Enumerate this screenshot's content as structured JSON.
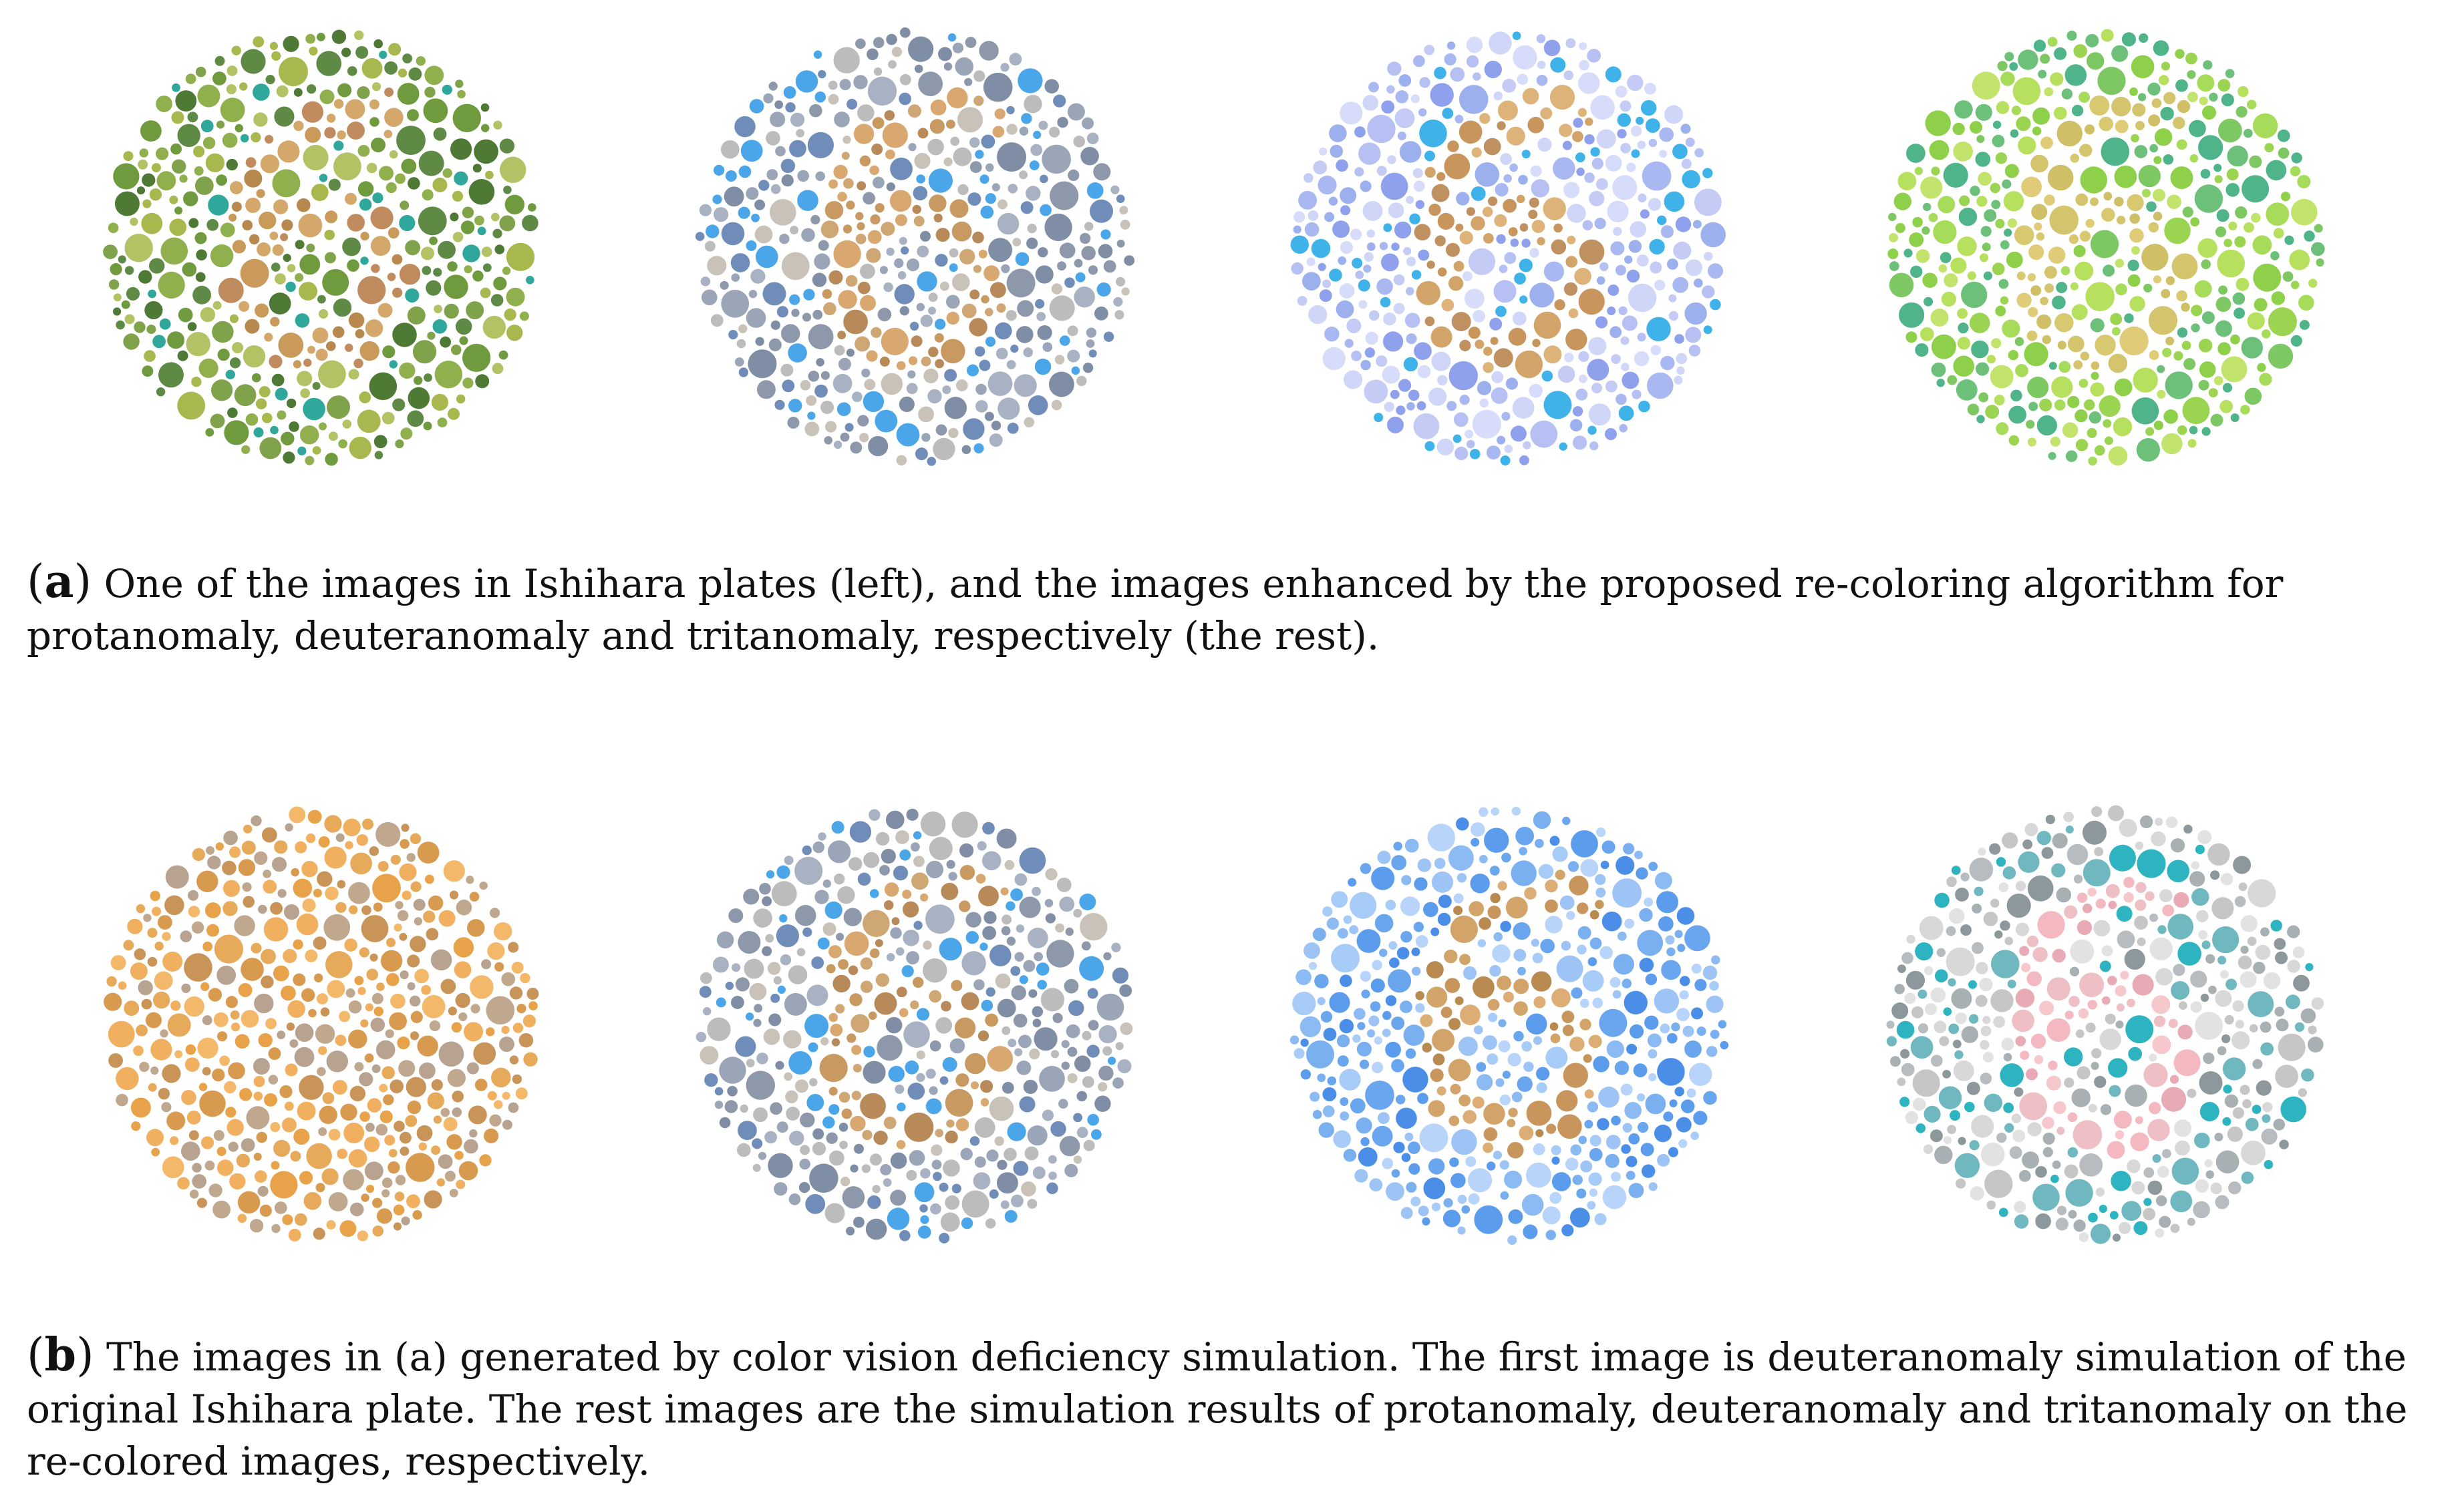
{
  "figure": {
    "panel_a": {
      "label": "a",
      "caption": "One of the images in Ishihara plates (left), and the images enhanced by the proposed re-coloring algorithm for protanomaly, deuteranomaly and tritanomaly, respectively (the rest).",
      "plates": [
        {
          "digit": "6",
          "bg_colors": [
            "#6f9a3d",
            "#8fb04d",
            "#a9b84e",
            "#5e8a45",
            "#2fa79a",
            "#7fa24a",
            "#4e7a36",
            "#b4c266"
          ],
          "fg_colors": [
            "#c99a5a",
            "#b8894e",
            "#d3a86a",
            "#c08b5f"
          ]
        },
        {
          "digit": "6",
          "bg_colors": [
            "#8d98aa",
            "#a9b2c2",
            "#bcbcbc",
            "#6f8db8",
            "#4aa6e8",
            "#9aa6b8",
            "#c8c2b8",
            "#7f8ea4"
          ],
          "fg_colors": [
            "#c89a62",
            "#d8a870",
            "#b88a5a",
            "#cfa775"
          ]
        },
        {
          "digit": "6",
          "bg_colors": [
            "#a9b8f0",
            "#c4ccf6",
            "#8fa0ec",
            "#d6dcfa",
            "#3fb2ea",
            "#b6c0f2",
            "#9db0ee",
            "#cfd6f8"
          ],
          "fg_colors": [
            "#d2a46a",
            "#c8965c",
            "#ddb37a",
            "#bf9060"
          ]
        },
        {
          "digit": "6",
          "bg_colors": [
            "#8ed04a",
            "#a6dc5a",
            "#6cc07a",
            "#b6e05e",
            "#50b48a",
            "#9bd450",
            "#7ec864",
            "#c2e46c"
          ],
          "fg_colors": [
            "#d8c870",
            "#e0cc78",
            "#cfc068",
            "#d4c46e"
          ]
        }
      ]
    },
    "panel_b": {
      "label": "b",
      "caption": "The images in (a) generated by color vision deficiency simulation. The first image is deuteranomaly simulation of the original Ishihara plate. The rest images are the simulation results of protanomaly, deuteranomaly and tritanomaly on the re-colored images, respectively.",
      "plates": [
        {
          "digit": "",
          "bg_colors": [
            "#e8a24a",
            "#f0b060",
            "#c99458",
            "#b8a290",
            "#f3b86a",
            "#d89a4e",
            "#c0a88e",
            "#e6aa5a"
          ],
          "fg_colors": [
            "#e8a24a",
            "#f0b060",
            "#c99458",
            "#b8a290"
          ]
        },
        {
          "digit": "6",
          "bg_colors": [
            "#8d98aa",
            "#a9b2c2",
            "#bcbcbc",
            "#6f8db8",
            "#4aa6e8",
            "#9aa6b8",
            "#c8c2b8",
            "#7f8ea4"
          ],
          "fg_colors": [
            "#c89a62",
            "#d8a870",
            "#b88a5a",
            "#cfa775"
          ]
        },
        {
          "digit": "6",
          "bg_colors": [
            "#7ab0f0",
            "#9ec4f6",
            "#5c9cec",
            "#b8d4fa",
            "#4a8ee8",
            "#8cbaf2",
            "#a8ccf8",
            "#6aa6ee"
          ],
          "fg_colors": [
            "#c8965c",
            "#d2a46a",
            "#b88a50",
            "#dcae76"
          ]
        },
        {
          "digit": "6",
          "bg_colors": [
            "#d8d8d8",
            "#a8b0b4",
            "#c6c6c6",
            "#2eb4c0",
            "#8c989c",
            "#e2e2e2",
            "#6fb8c0",
            "#b6bcc0"
          ],
          "fg_colors": [
            "#f4b8c0",
            "#eec0c6",
            "#f6c8cc",
            "#e8aab4"
          ]
        }
      ]
    }
  }
}
